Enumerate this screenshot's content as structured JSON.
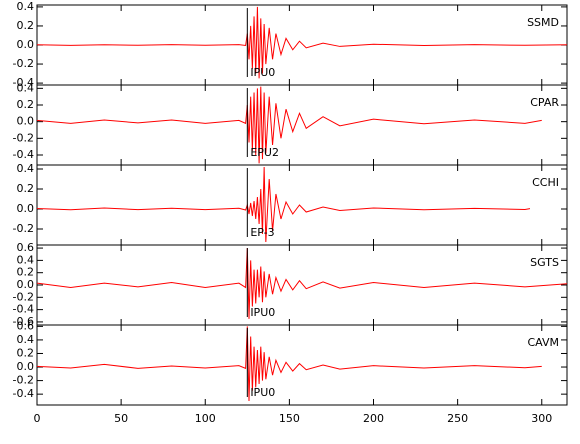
{
  "chart_data": [
    {
      "type": "line",
      "label": "SSMD",
      "pick": {
        "x": 125,
        "label": "IPU0"
      },
      "color": "#ff0000",
      "xlim": [
        0,
        315
      ],
      "xticks": [
        0,
        50,
        100,
        150,
        200,
        250,
        300
      ],
      "ylim": [
        -0.42,
        0.42
      ],
      "yticks": [
        0.4,
        0.2,
        {
          "value": 0,
          "label": "0.0"
        },
        -0.2,
        -0.4
      ],
      "x": [
        0,
        20,
        40,
        60,
        80,
        100,
        120,
        124,
        125,
        126,
        127,
        128,
        129,
        130,
        131,
        132,
        133,
        134,
        135,
        136,
        138,
        140,
        142,
        145,
        148,
        152,
        156,
        160,
        170,
        180,
        200,
        230,
        260,
        290,
        315
      ],
      "values": [
        0.003,
        -0.004,
        0.003,
        -0.003,
        0.004,
        -0.003,
        0.004,
        -0.005,
        0.12,
        -0.15,
        0.2,
        -0.25,
        0.3,
        -0.3,
        0.4,
        -0.35,
        0.28,
        -0.3,
        0.22,
        -0.2,
        0.18,
        -0.15,
        0.12,
        -0.1,
        0.07,
        -0.05,
        0.04,
        -0.03,
        0.02,
        -0.015,
        0.008,
        -0.005,
        0.004,
        -0.003,
        0.002
      ]
    },
    {
      "type": "line",
      "label": "CPAR",
      "pick": {
        "x": 125,
        "label": "EPU2"
      },
      "color": "#ff0000",
      "xlim": [
        0,
        315
      ],
      "xticks": [
        0,
        50,
        100,
        150,
        200,
        250,
        300
      ],
      "ylim": [
        -0.52,
        0.44
      ],
      "yticks": [
        0.4,
        0.2,
        {
          "value": 0,
          "label": "0.0"
        },
        -0.2,
        -0.4
      ],
      "x": [
        0,
        20,
        40,
        60,
        80,
        100,
        120,
        124,
        125,
        126,
        127,
        128,
        129,
        130,
        131,
        132,
        133,
        134,
        135,
        136,
        138,
        140,
        142,
        145,
        148,
        152,
        156,
        160,
        170,
        180,
        200,
        230,
        260,
        290,
        300
      ],
      "values": [
        0.015,
        -0.02,
        0.02,
        -0.015,
        0.02,
        -0.02,
        0.015,
        -0.02,
        0.2,
        -0.25,
        0.3,
        -0.35,
        0.35,
        -0.4,
        0.4,
        -0.5,
        0.42,
        -0.45,
        0.35,
        -0.38,
        0.3,
        -0.28,
        0.22,
        -0.2,
        0.15,
        -0.12,
        0.1,
        -0.08,
        0.06,
        -0.05,
        0.03,
        -0.025,
        0.02,
        -0.02,
        0.015
      ]
    },
    {
      "type": "line",
      "label": "CCHI",
      "pick": {
        "x": 125,
        "label": "EP-3"
      },
      "color": "#ff0000",
      "xlim": [
        0,
        315
      ],
      "xticks": [
        0,
        50,
        100,
        150,
        200,
        250,
        300
      ],
      "ylim": [
        -0.36,
        0.44
      ],
      "yticks": [
        0.4,
        0.2,
        {
          "value": 0,
          "label": "0.0"
        },
        -0.2
      ],
      "x": [
        0,
        20,
        40,
        60,
        80,
        100,
        120,
        124,
        125,
        126,
        127,
        128,
        129,
        130,
        131,
        132,
        133,
        134,
        135,
        136,
        138,
        140,
        142,
        145,
        148,
        152,
        156,
        160,
        170,
        180,
        200,
        230,
        260,
        290,
        293
      ],
      "values": [
        0.005,
        -0.008,
        0.01,
        -0.006,
        0.008,
        -0.006,
        0.007,
        -0.01,
        0.04,
        -0.05,
        0.06,
        -0.07,
        0.08,
        -0.1,
        0.12,
        -0.15,
        0.2,
        -0.25,
        0.42,
        -0.33,
        0.3,
        -0.22,
        0.15,
        -0.1,
        0.07,
        -0.05,
        0.04,
        -0.03,
        0.02,
        -0.015,
        0.01,
        -0.008,
        0.006,
        -0.005,
        0.004
      ]
    },
    {
      "type": "line",
      "label": "SGTS",
      "pick": {
        "x": 125,
        "label": "IPU0"
      },
      "color": "#ff0000",
      "xlim": [
        0,
        315
      ],
      "xticks": [
        0,
        50,
        100,
        150,
        200,
        250,
        300
      ],
      "ylim": [
        -0.65,
        0.65
      ],
      "yticks": [
        0.6,
        0.4,
        0.2,
        {
          "value": 0,
          "label": "0.0"
        },
        -0.2,
        -0.4,
        -0.6
      ],
      "x": [
        0,
        20,
        40,
        60,
        80,
        100,
        120,
        124,
        125,
        126,
        127,
        128,
        129,
        130,
        131,
        132,
        133,
        134,
        135,
        136,
        138,
        140,
        142,
        145,
        148,
        152,
        156,
        160,
        170,
        180,
        200,
        230,
        260,
        290,
        315
      ],
      "values": [
        0.03,
        -0.04,
        0.03,
        -0.03,
        0.04,
        -0.04,
        0.03,
        -0.04,
        0.6,
        -0.55,
        0.4,
        -0.35,
        0.25,
        -0.3,
        0.25,
        -0.2,
        0.3,
        -0.28,
        0.22,
        -0.2,
        0.18,
        -0.15,
        0.12,
        -0.1,
        0.09,
        -0.08,
        0.07,
        -0.06,
        0.05,
        -0.05,
        0.04,
        -0.04,
        0.03,
        -0.03,
        0.02
      ]
    },
    {
      "type": "line",
      "label": "CAVM",
      "pick": {
        "x": 125,
        "label": "IPU0"
      },
      "color": "#ff0000",
      "xlim": [
        0,
        315
      ],
      "xticks": [
        0,
        50,
        100,
        150,
        200,
        250,
        300
      ],
      "ylim": [
        -0.56,
        0.62
      ],
      "yticks": [
        0.6,
        0.4,
        0.2,
        {
          "value": 0,
          "label": "0.0"
        },
        -0.2,
        -0.4
      ],
      "x": [
        0,
        20,
        40,
        60,
        80,
        100,
        120,
        124,
        125,
        126,
        127,
        128,
        129,
        130,
        131,
        132,
        133,
        134,
        135,
        136,
        138,
        140,
        142,
        145,
        148,
        152,
        156,
        160,
        170,
        180,
        200,
        230,
        260,
        290,
        300
      ],
      "values": [
        0.01,
        -0.015,
        0.04,
        -0.02,
        0.015,
        -0.015,
        0.02,
        -0.02,
        0.6,
        -0.5,
        0.45,
        -0.35,
        0.3,
        -0.3,
        0.25,
        -0.25,
        0.3,
        -0.2,
        0.22,
        -0.18,
        0.15,
        -0.12,
        0.1,
        -0.08,
        0.07,
        -0.06,
        0.05,
        -0.04,
        0.03,
        -0.03,
        0.02,
        -0.015,
        0.02,
        -0.01,
        0.01
      ]
    }
  ]
}
